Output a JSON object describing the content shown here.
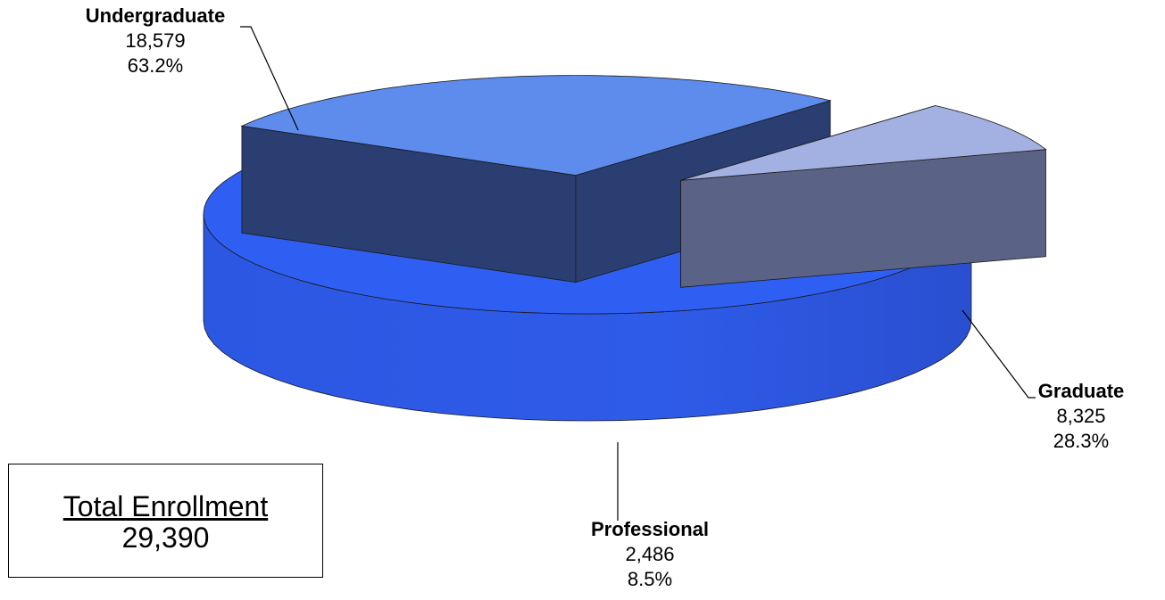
{
  "chart_data": {
    "type": "pie",
    "style": "3d-exploded",
    "categories": [
      "Undergraduate",
      "Graduate",
      "Professional"
    ],
    "values": [
      18579,
      8325,
      2486
    ],
    "value_labels": [
      "18,579",
      "8,325",
      "2,486"
    ],
    "percent_labels": [
      "63.2%",
      "28.3%",
      "8.5%"
    ],
    "colors": {
      "Undergraduate": "#2f5ff2",
      "Graduate": "#5d8ced",
      "Professional": "#a3b1e2"
    },
    "legend": "none"
  },
  "total": {
    "label": "Total Enrollment",
    "value": "29,390"
  }
}
